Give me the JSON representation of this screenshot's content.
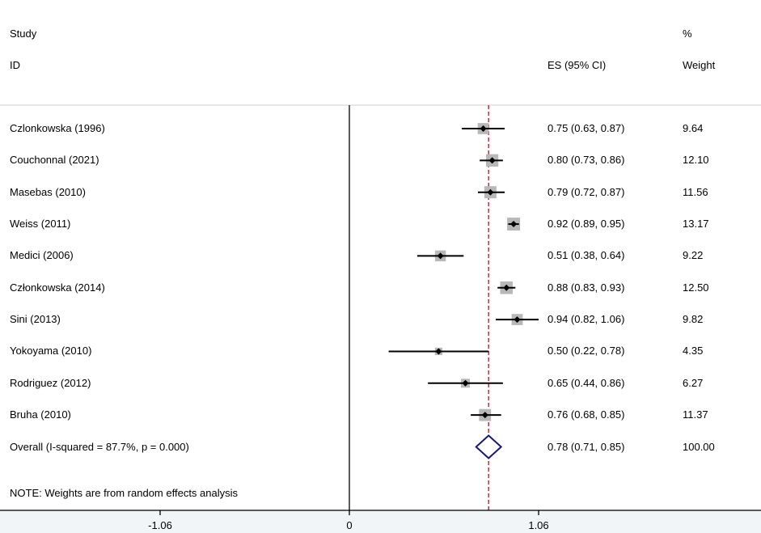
{
  "headers": {
    "study_line1": "Study",
    "study_line2": "ID",
    "es_label": "ES (95% CI)",
    "weight_line1": "%",
    "weight_line2": "Weight"
  },
  "note": "NOTE: Weights are from random effects analysis",
  "chart_data": {
    "type": "forest",
    "xlim": [
      -1.06,
      1.06
    ],
    "x_ticks": [
      -1.06,
      0,
      1.06
    ],
    "x_tick_labels": [
      "-1.06",
      "0",
      "1.06"
    ],
    "reference_line": 0,
    "overall_line": 0.78,
    "colors": {
      "box": "#b8b8b8",
      "point": "#000000",
      "ci": "#000000",
      "overall_diamond": "#1a1a6e",
      "overall_line": "#9b1b1b"
    },
    "studies": [
      {
        "name": "Czlonkowska (1996)",
        "es": 0.75,
        "lo": 0.63,
        "hi": 0.87,
        "es_ci": "0.75 (0.63, 0.87)",
        "weight": 9.64,
        "weight_label": "9.64"
      },
      {
        "name": "Couchonnal (2021)",
        "es": 0.8,
        "lo": 0.73,
        "hi": 0.86,
        "es_ci": "0.80 (0.73, 0.86)",
        "weight": 12.1,
        "weight_label": "12.10"
      },
      {
        "name": "Masebas (2010)",
        "es": 0.79,
        "lo": 0.72,
        "hi": 0.87,
        "es_ci": "0.79 (0.72, 0.87)",
        "weight": 11.56,
        "weight_label": "11.56"
      },
      {
        "name": "Weiss (2011)",
        "es": 0.92,
        "lo": 0.89,
        "hi": 0.95,
        "es_ci": "0.92 (0.89, 0.95)",
        "weight": 13.17,
        "weight_label": "13.17"
      },
      {
        "name": "Medici (2006)",
        "es": 0.51,
        "lo": 0.38,
        "hi": 0.64,
        "es_ci": "0.51 (0.38, 0.64)",
        "weight": 9.22,
        "weight_label": "9.22"
      },
      {
        "name": "Członkowska (2014)",
        "es": 0.88,
        "lo": 0.83,
        "hi": 0.93,
        "es_ci": "0.88 (0.83, 0.93)",
        "weight": 12.5,
        "weight_label": "12.50"
      },
      {
        "name": "Sini (2013)",
        "es": 0.94,
        "lo": 0.82,
        "hi": 1.06,
        "es_ci": "0.94 (0.82, 1.06)",
        "weight": 9.82,
        "weight_label": "9.82"
      },
      {
        "name": "Yokoyama (2010)",
        "es": 0.5,
        "lo": 0.22,
        "hi": 0.78,
        "es_ci": "0.50 (0.22, 0.78)",
        "weight": 4.35,
        "weight_label": "4.35"
      },
      {
        "name": "Rodriguez (2012)",
        "es": 0.65,
        "lo": 0.44,
        "hi": 0.86,
        "es_ci": "0.65 (0.44, 0.86)",
        "weight": 6.27,
        "weight_label": "6.27"
      },
      {
        "name": "Bruha (2010)",
        "es": 0.76,
        "lo": 0.68,
        "hi": 0.85,
        "es_ci": "0.76 (0.68, 0.85)",
        "weight": 11.37,
        "weight_label": "11.37"
      }
    ],
    "overall": {
      "name": "Overall  (I-squared = 87.7%, p = 0.000)",
      "es": 0.78,
      "lo": 0.71,
      "hi": 0.85,
      "es_ci": "0.78 (0.71, 0.85)",
      "weight_label": "100.00"
    }
  }
}
